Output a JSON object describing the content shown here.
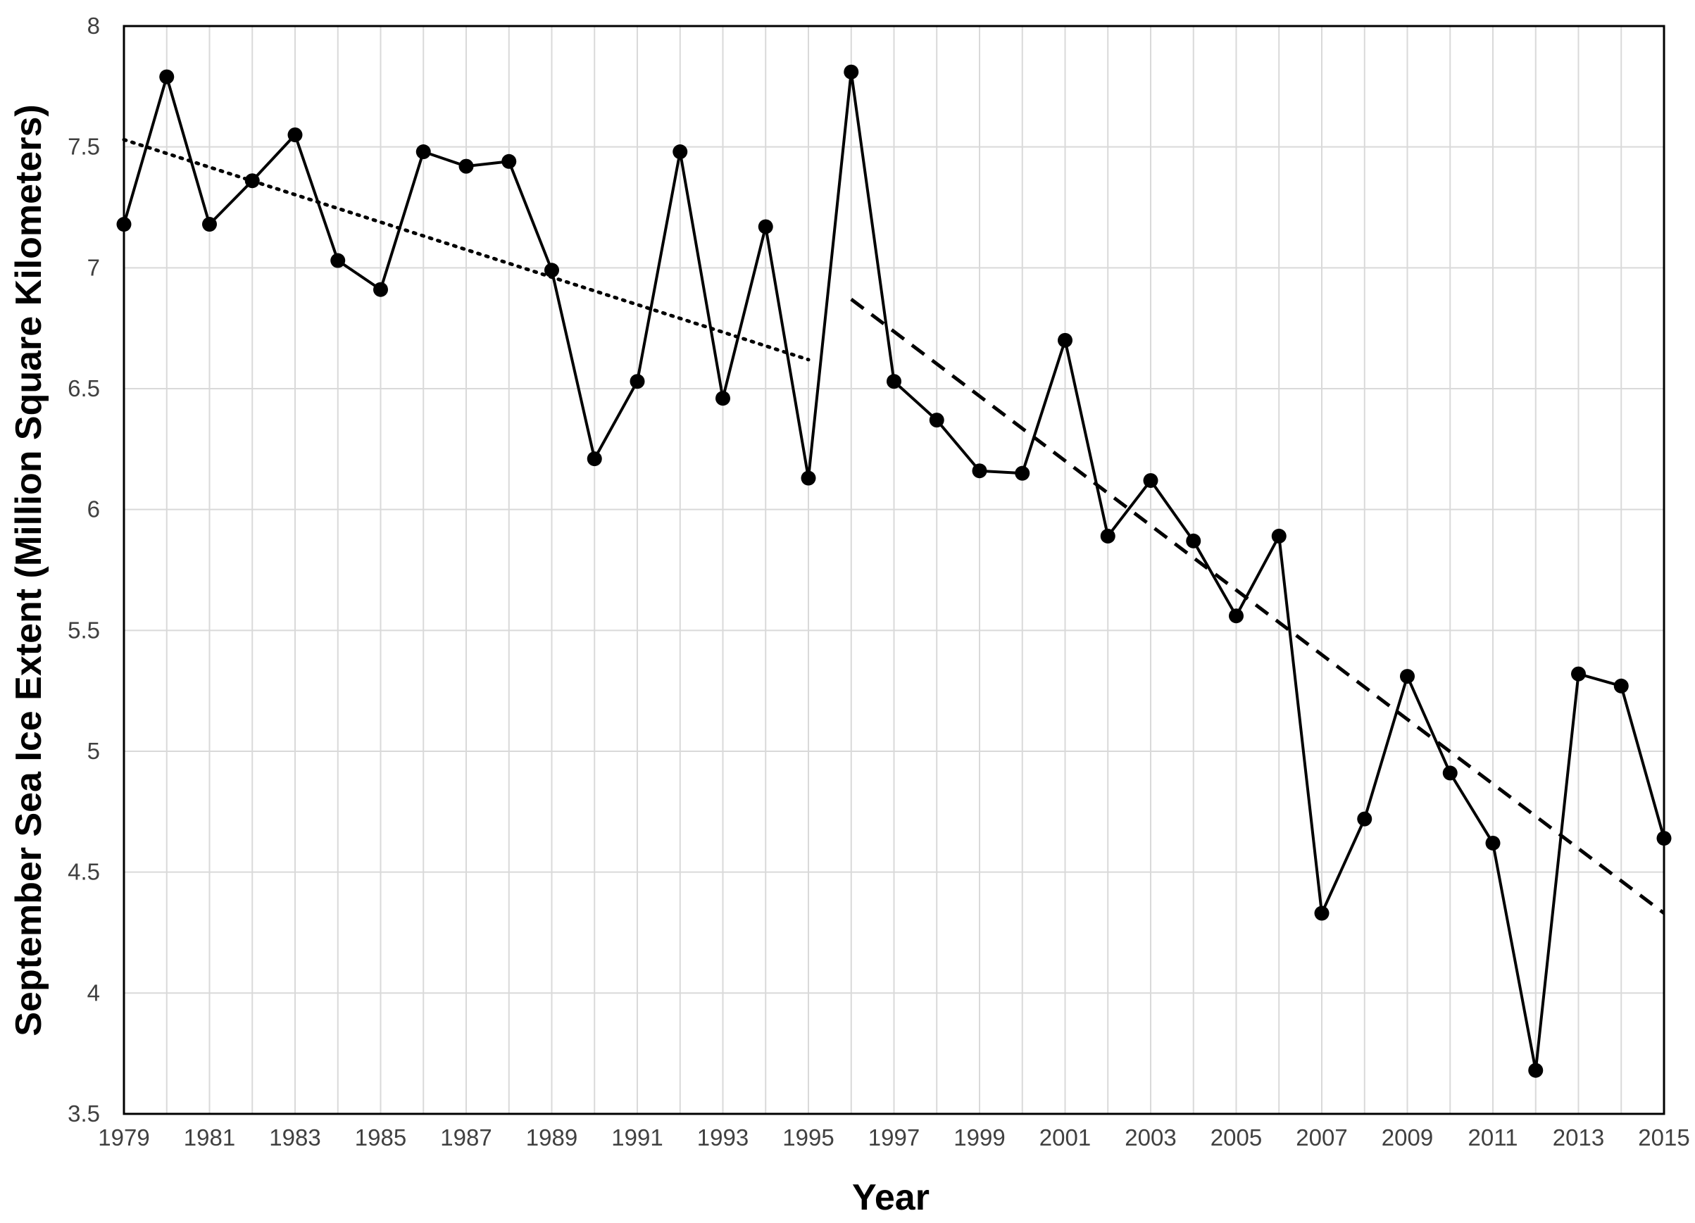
{
  "chart_data": {
    "type": "line",
    "title": "",
    "xlabel": "Year",
    "ylabel": "September Sea Ice Extent (Million Square Kilometers)",
    "xlim": [
      1979,
      2015
    ],
    "ylim": [
      3.5,
      8
    ],
    "grid": true,
    "legend": "none",
    "x_ticks": [
      "1979",
      "1981",
      "1983",
      "1985",
      "1987",
      "1989",
      "1991",
      "1993",
      "1995",
      "1997",
      "1999",
      "2001",
      "2003",
      "2005",
      "2007",
      "2009",
      "2011",
      "2013",
      "2015"
    ],
    "y_ticks": [
      "3.5",
      "4",
      "4.5",
      "5",
      "5.5",
      "6",
      "6.5",
      "7",
      "7.5",
      "8"
    ],
    "series": [
      {
        "x": [
          1979,
          1980,
          1981,
          1982,
          1983,
          1984,
          1985,
          1986,
          1987,
          1988,
          1989,
          1990,
          1991,
          1992,
          1993,
          1994,
          1995,
          1996,
          1997,
          1998,
          1999,
          2000,
          2001,
          2002,
          2003,
          2004,
          2005,
          2006,
          2007,
          2008,
          2009,
          2010,
          2011,
          2012,
          2013,
          2014,
          2015
        ],
        "values": [
          7.18,
          7.79,
          7.18,
          7.36,
          7.55,
          7.03,
          6.91,
          7.48,
          7.42,
          7.44,
          6.99,
          6.21,
          6.53,
          7.48,
          6.46,
          7.17,
          6.13,
          7.81,
          6.53,
          6.37,
          6.16,
          6.15,
          6.7,
          5.89,
          6.12,
          5.87,
          5.56,
          5.89,
          4.33,
          4.72,
          5.31,
          4.91,
          4.62,
          3.68,
          5.32,
          5.27,
          4.64
        ],
        "color": "#000000",
        "style": "solid with circular markers"
      }
    ],
    "trendlines": [
      {
        "style": "dotted",
        "x": [
          1979,
          1995
        ],
        "values": [
          7.53,
          6.62
        ],
        "color": "#000000"
      },
      {
        "style": "dashed",
        "x": [
          1996,
          2015
        ],
        "values": [
          6.87,
          4.33
        ],
        "color": "#000000"
      }
    ]
  }
}
